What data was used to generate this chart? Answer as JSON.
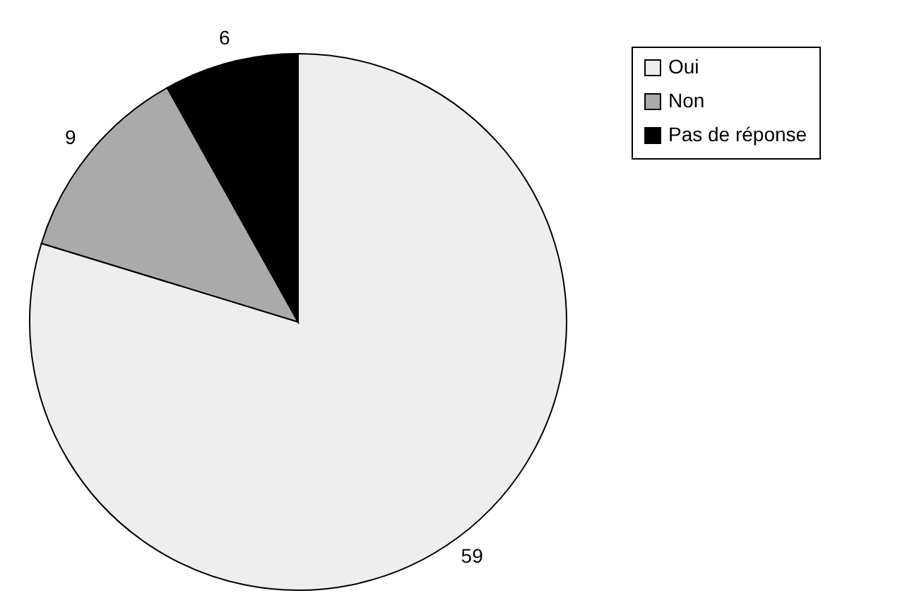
{
  "chart_data": {
    "type": "pie",
    "categories": [
      "Oui",
      "Non",
      "Pas de réponse"
    ],
    "values": [
      59,
      9,
      6
    ],
    "colors": [
      "#eeeeee",
      "#aaaaaa",
      "#000000"
    ],
    "data_labels": true,
    "legend": "right"
  }
}
